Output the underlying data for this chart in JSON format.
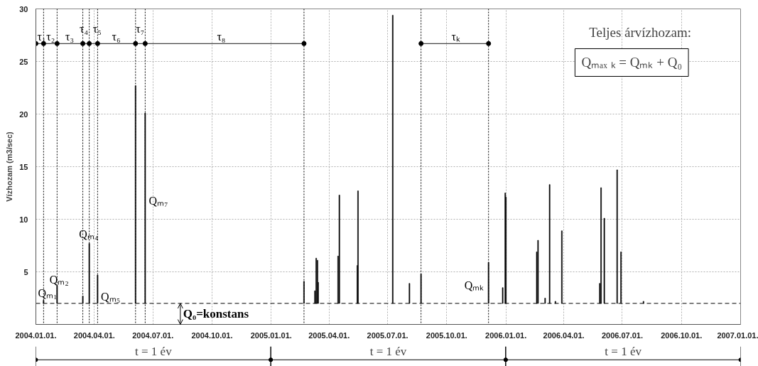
{
  "chart_data": {
    "type": "bar",
    "ylabel": "Vízhozam (m3/sec)",
    "xlim": [
      "2004-01-01",
      "2007-01-01"
    ],
    "xticks": [
      {
        "value": "2004-01-01",
        "label": "2004.01.01."
      },
      {
        "value": "2004-04-01",
        "label": "2004.04.01."
      },
      {
        "value": "2004-07-01",
        "label": "2004.07.01."
      },
      {
        "value": "2004-10-01",
        "label": "2004.10.01."
      },
      {
        "value": "2005-01-01",
        "label": "2005.01.01."
      },
      {
        "value": "2005-04-01",
        "label": "2005.04.01."
      },
      {
        "value": "2005-07-01",
        "label": "2005.07.01."
      },
      {
        "value": "2005-10-01",
        "label": "2005.10.01."
      },
      {
        "value": "2006-01-01",
        "label": "2006.01.01."
      },
      {
        "value": "2006-04-01",
        "label": "2006.04.01."
      },
      {
        "value": "2006-07-01",
        "label": "2006.07.01."
      },
      {
        "value": "2006-10-01",
        "label": "2006.10.01."
      },
      {
        "value": "2007-01-01",
        "label": "2007.01.01."
      }
    ],
    "ylim": [
      0,
      30
    ],
    "yticks": [
      5,
      10,
      15,
      20,
      25,
      30
    ],
    "grid": true,
    "series": [
      {
        "color": "#000000",
        "x": [
          "2004-01-13",
          "2004-02-03",
          "2004-03-14",
          "2004-03-24",
          "2004-04-06",
          "2004-06-04",
          "2004-06-19",
          "2005-02-21",
          "2005-03-10",
          "2005-03-12",
          "2005-03-14",
          "2005-03-15",
          "2005-04-15",
          "2005-04-17",
          "2005-05-15",
          "2005-05-16",
          "2005-07-09",
          "2005-08-04",
          "2005-08-22",
          "2005-12-05",
          "2005-12-27",
          "2005-12-31",
          "2006-01-01",
          "2006-02-18",
          "2006-02-20",
          "2006-03-03",
          "2006-03-10",
          "2006-03-19",
          "2006-03-29",
          "2006-05-27",
          "2006-05-29",
          "2006-06-03",
          "2006-06-23",
          "2006-06-29",
          "2006-08-03"
        ],
        "base": [
          2,
          2,
          2,
          2,
          2,
          2,
          2,
          2,
          2,
          2,
          2,
          2,
          2,
          2,
          2,
          2,
          2,
          2,
          2,
          2,
          2,
          2,
          2,
          2,
          2,
          2,
          2,
          2,
          2,
          2,
          2,
          2,
          2,
          2,
          2
        ],
        "values": [
          0.3,
          1.7,
          0.7,
          5.7,
          2.7,
          20.7,
          18.1,
          2.1,
          1.2,
          4.3,
          4.1,
          2.0,
          4.5,
          10.3,
          3.6,
          10.7,
          27.4,
          1.9,
          2.8,
          3.9,
          1.5,
          10.5,
          10.1,
          4.9,
          6.0,
          0.5,
          11.3,
          0.2,
          6.9,
          1.9,
          11.0,
          8.1,
          12.7,
          4.9,
          0.2
        ]
      },
      {
        "type": "line",
        "color": "#444444",
        "marker": "circle",
        "x": [
          "2004-01-01",
          "2004-01-13",
          "2004-02-03",
          "2004-03-14",
          "2004-03-24",
          "2004-04-06",
          "2004-06-04",
          "2004-06-19",
          "2005-02-21"
        ],
        "values": [
          26.7,
          26.7,
          26.7,
          26.7,
          26.7,
          26.7,
          26.7,
          26.7,
          26.7
        ]
      },
      {
        "type": "line",
        "color": "#444444",
        "marker": "circle",
        "x": [
          "2005-08-22",
          "2005-12-05"
        ],
        "values": [
          26.7,
          26.7
        ]
      }
    ],
    "ref_lines": [
      {
        "axis": "y",
        "value": 2,
        "label": "Q₀=konstans",
        "line_style": "dashed",
        "color": "#000000"
      },
      {
        "axis": "x",
        "value": "2004-01-13",
        "line_style": "dotted",
        "color": "#000000"
      },
      {
        "axis": "x",
        "value": "2004-02-03",
        "line_style": "dotted",
        "color": "#000000"
      },
      {
        "axis": "x",
        "value": "2004-03-14",
        "line_style": "dotted",
        "color": "#000000"
      },
      {
        "axis": "x",
        "value": "2004-03-24",
        "line_style": "dotted",
        "color": "#000000"
      },
      {
        "axis": "x",
        "value": "2004-04-06",
        "line_style": "dotted",
        "color": "#000000"
      },
      {
        "axis": "x",
        "value": "2004-06-04",
        "line_style": "dotted",
        "color": "#000000"
      },
      {
        "axis": "x",
        "value": "2004-06-19",
        "line_style": "dotted",
        "color": "#000000"
      },
      {
        "axis": "x",
        "value": "2005-02-21",
        "line_style": "dotted",
        "color": "#000000"
      },
      {
        "axis": "x",
        "value": "2005-08-22",
        "line_style": "dotted",
        "color": "#000000"
      },
      {
        "axis": "x",
        "value": "2005-12-05",
        "line_style": "dotted",
        "color": "#000000"
      }
    ],
    "annotations": [
      "Teljes árvízhozam:",
      "Qₘₐₓ ₖ = Qₘₖ + Q₀",
      "Qₘ₁",
      "Qₘ₂",
      "Qₘ₄",
      "Qₘ₅",
      "Qₘ₇",
      "Qₘₖ",
      "τ₁",
      "τ₂",
      "τ₃",
      "τ₄",
      "τ₅",
      "τ₆",
      "τ₇",
      "τ₈",
      "τₖ",
      "t = 1 év",
      "t = 1 év",
      "t = 1 év"
    ]
  }
}
